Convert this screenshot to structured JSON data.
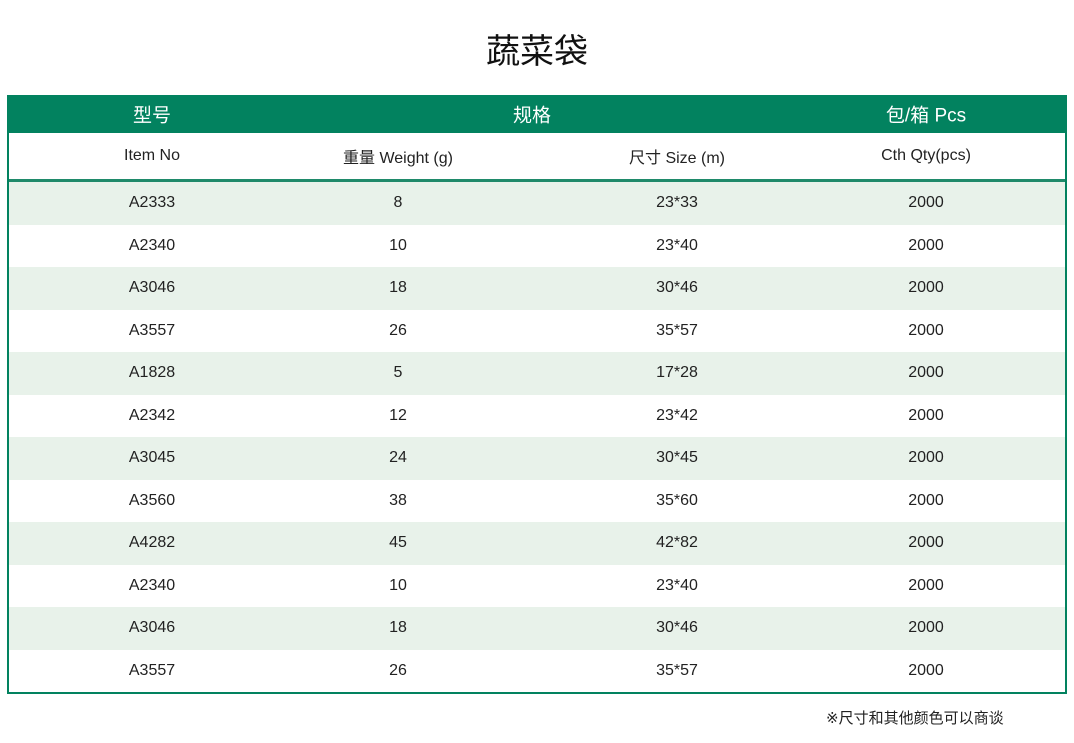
{
  "title": "蔬菜袋",
  "header": {
    "model": "型号",
    "spec": "规格",
    "pack": "包/箱 Pcs"
  },
  "subheader": {
    "item_no": "Item No",
    "weight": "重量 Weight (g)",
    "size": "尺寸 Size (m)",
    "qty": "Cth Qty(pcs)"
  },
  "rows": [
    {
      "item": "A2333",
      "weight": "8",
      "size": "23*33",
      "qty": "2000"
    },
    {
      "item": "A2340",
      "weight": "10",
      "size": "23*40",
      "qty": "2000"
    },
    {
      "item": "A3046",
      "weight": "18",
      "size": "30*46",
      "qty": "2000"
    },
    {
      "item": "A3557",
      "weight": "26",
      "size": "35*57",
      "qty": "2000"
    },
    {
      "item": "A1828",
      "weight": "5",
      "size": "17*28",
      "qty": "2000"
    },
    {
      "item": "A2342",
      "weight": "12",
      "size": "23*42",
      "qty": "2000"
    },
    {
      "item": "A3045",
      "weight": "24",
      "size": "30*45",
      "qty": "2000"
    },
    {
      "item": "A3560",
      "weight": "38",
      "size": "35*60",
      "qty": "2000"
    },
    {
      "item": "A4282",
      "weight": "45",
      "size": "42*82",
      "qty": "2000"
    },
    {
      "item": "A2340",
      "weight": "10",
      "size": "23*40",
      "qty": "2000"
    },
    {
      "item": "A3046",
      "weight": "18",
      "size": "30*46",
      "qty": "2000"
    },
    {
      "item": "A3557",
      "weight": "26",
      "size": "35*57",
      "qty": "2000"
    }
  ],
  "note": "※尺寸和其他颜色可以商谈",
  "colors": {
    "accent": "#02825f",
    "row_alt": "#e8f2ea"
  }
}
